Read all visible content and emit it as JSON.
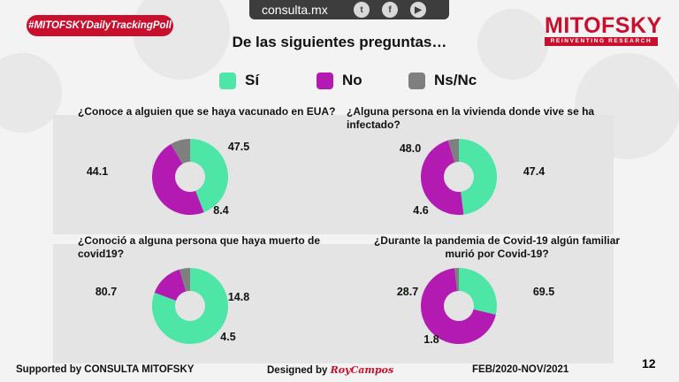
{
  "hashtag": "#MITOFSKYDailyTrackingPoll",
  "site": "consulta.mx",
  "social": [
    "twitter-icon",
    "facebook-icon",
    "youtube-icon"
  ],
  "logo": {
    "name": "MITOFSKY",
    "tagline": "REINVENTING RESEARCH"
  },
  "title": "De las siguientes preguntas…",
  "legend": [
    {
      "label": "Sí",
      "color": "#4ee6a6"
    },
    {
      "label": "No",
      "color": "#b21ab2"
    },
    {
      "label": "Ns/Nc",
      "color": "#7f7f7f"
    }
  ],
  "chart_data": [
    {
      "type": "pie",
      "question": "¿Conoce a alguien que se haya vacunado en EUA?",
      "categories": [
        "Sí",
        "No",
        "Ns/Nc"
      ],
      "values": [
        44.1,
        47.5,
        8.4
      ],
      "labels": [
        "44.1",
        "47.5",
        "8.4"
      ]
    },
    {
      "type": "pie",
      "question": "¿Alguna persona en la vivienda donde vive se ha infectado?",
      "categories": [
        "Sí",
        "No",
        "Ns/Nc"
      ],
      "values": [
        48.0,
        47.4,
        4.6
      ],
      "labels": [
        "48.0",
        "47.4",
        "4.6"
      ]
    },
    {
      "type": "pie",
      "question": "¿Conoció a alguna persona que haya muerto de covid19?",
      "categories": [
        "Sí",
        "No",
        "Ns/Nc"
      ],
      "values": [
        80.7,
        14.8,
        4.5
      ],
      "labels": [
        "80.7",
        "14.8",
        "4.5"
      ]
    },
    {
      "type": "pie",
      "question": "¿Durante la pandemia de Covid-19 algún familiar murió por Covid-19?",
      "categories": [
        "Sí",
        "No",
        "Ns/Nc"
      ],
      "values": [
        28.7,
        69.5,
        1.8
      ],
      "labels": [
        "28.7",
        "69.5",
        "1.8"
      ]
    }
  ],
  "footer": {
    "supported": "Supported by   CONSULTA   MITOFSKY",
    "designed": "Designed by ",
    "designer": "RoyCampos",
    "period": "FEB/2020-NOV/2021",
    "page": "12"
  }
}
